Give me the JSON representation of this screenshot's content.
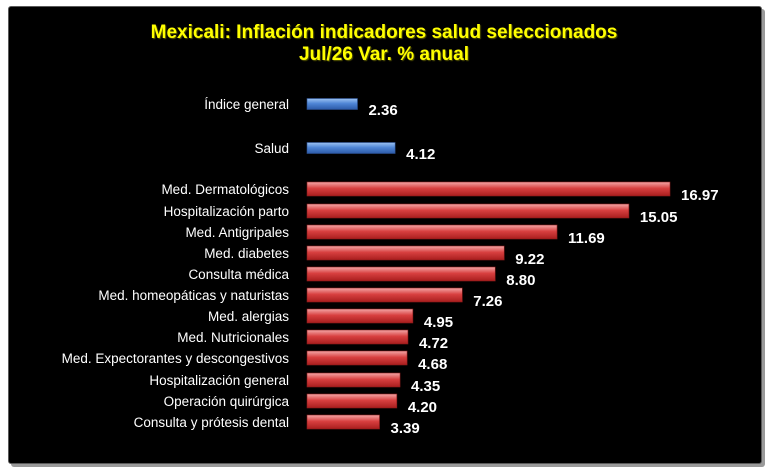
{
  "chart_data": {
    "type": "bar",
    "orientation": "horizontal",
    "title": "Mexicali: Inflación indicadores salud seleccionados",
    "subtitle": "Jul/26 Var. % anual",
    "xlabel": "",
    "ylabel": "",
    "xlim": [
      0,
      18
    ],
    "grid": false,
    "legend": "none",
    "colors": {
      "background": "#000000",
      "title": "#ffff00",
      "text": "#ffffff",
      "highlight_bar": "#4a7fd0",
      "bar": "#d03838"
    },
    "categories": [
      "Índice general",
      "Salud",
      "Med. Dermatológicos",
      "Hospitalización parto",
      "Med.  Antigripales",
      "Med. diabetes",
      "Consulta médica",
      "Med. homeopáticas y naturistas",
      "Med. alergias",
      "Med. Nutricionales",
      "Med. Expectorantes y descongestivos",
      "Hospitalización general",
      "Operación quirúrgica",
      "Consulta y prótesis dental"
    ],
    "values": [
      2.36,
      4.12,
      16.97,
      15.05,
      11.69,
      9.22,
      8.8,
      7.26,
      4.95,
      4.72,
      4.68,
      4.35,
      4.2,
      3.39
    ],
    "value_labels": [
      "2.36",
      "4.12",
      "16.97",
      "15.05",
      "11.69",
      "9.22",
      "8.80",
      "7.26",
      "4.95",
      "4.72",
      "4.68",
      "4.35",
      "4.20",
      "3.39"
    ],
    "bar_colors": [
      "blue",
      "blue",
      "red",
      "red",
      "red",
      "red",
      "red",
      "red",
      "red",
      "red",
      "red",
      "red",
      "red",
      "red"
    ]
  }
}
